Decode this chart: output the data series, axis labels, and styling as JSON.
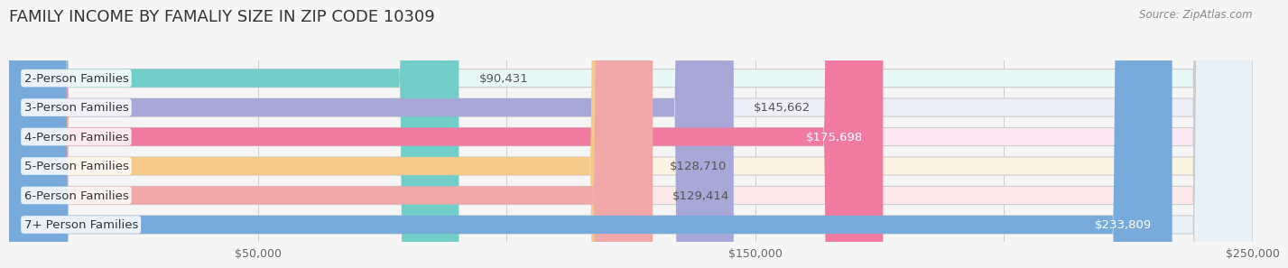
{
  "title": "FAMILY INCOME BY FAMALIY SIZE IN ZIP CODE 10309",
  "source": "Source: ZipAtlas.com",
  "categories": [
    "2-Person Families",
    "3-Person Families",
    "4-Person Families",
    "5-Person Families",
    "6-Person Families",
    "7+ Person Families"
  ],
  "values": [
    90431,
    145662,
    175698,
    128710,
    129414,
    233809
  ],
  "bar_colors": [
    "#72cec8",
    "#a8a8d8",
    "#f07aa0",
    "#f5c98a",
    "#f0a8a8",
    "#78aadc"
  ],
  "bar_bg_colors": [
    "#e8f8f7",
    "#eeeef8",
    "#fce8f0",
    "#fdf3e3",
    "#fce8e8",
    "#e8f0f8"
  ],
  "label_colors": [
    "#555555",
    "#555555",
    "#ffffff",
    "#555555",
    "#555555",
    "#ffffff"
  ],
  "xlim": [
    0,
    250000
  ],
  "xtick_values": [
    0,
    50000,
    100000,
    150000,
    200000,
    250000
  ],
  "xtick_labels": [
    "",
    "$50,000",
    "",
    "$150,000",
    "",
    "$250,000"
  ],
  "bar_height": 0.62,
  "bg_color": "#f5f5f5",
  "title_fontsize": 13,
  "label_fontsize": 9.5
}
